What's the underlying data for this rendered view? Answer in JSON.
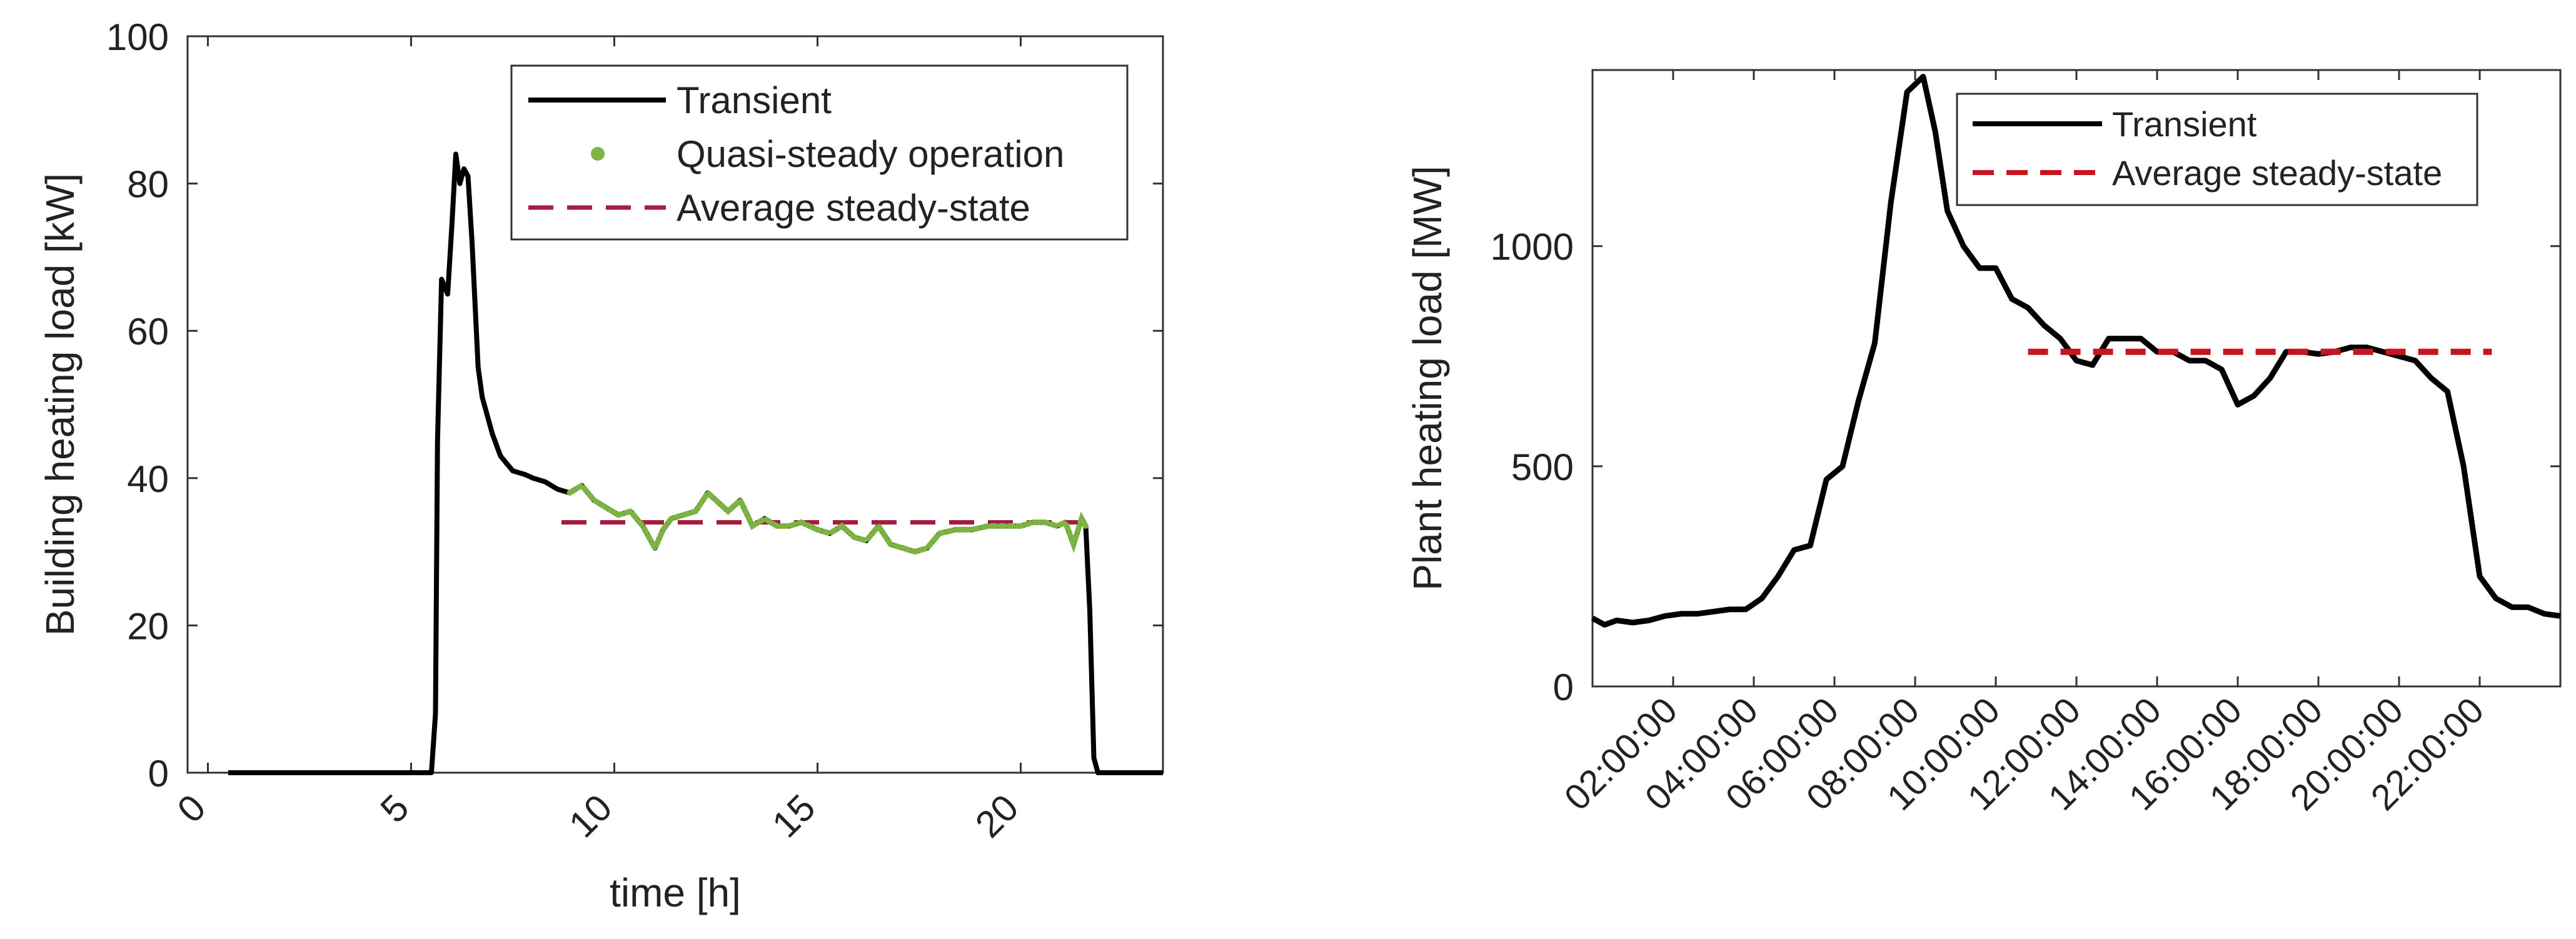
{
  "chart_data": [
    {
      "type": "line",
      "xlabel": "time [h]",
      "ylabel": "Building heating load [kW]",
      "xlim": [
        -0.5,
        23.5
      ],
      "ylim": [
        0,
        100
      ],
      "xticks": [
        0,
        5,
        10,
        15,
        20
      ],
      "yticks": [
        0,
        20,
        40,
        60,
        80,
        100
      ],
      "legend": {
        "position": "top-right",
        "entries": [
          "Transient",
          "Quasi-steady operation",
          "Average steady-state"
        ]
      },
      "colors": {
        "transient": "#000000",
        "quasi": "#7cb342",
        "average": "#a61c3c"
      },
      "series": [
        {
          "name": "Transient",
          "style": "solid",
          "x": [
            0.5,
            5.5,
            5.6,
            5.65,
            5.75,
            5.9,
            6.0,
            6.1,
            6.2,
            6.3,
            6.4,
            6.5,
            6.65,
            6.75,
            6.85,
            7.0,
            7.2,
            7.5,
            7.8,
            8.0,
            8.3,
            8.6,
            8.9,
            9.2,
            9.5,
            9.8,
            10.1,
            10.4,
            10.7,
            11.0,
            11.2,
            11.4,
            11.7,
            12.0,
            12.3,
            12.5,
            12.8,
            13.1,
            13.4,
            13.7,
            14.0,
            14.3,
            14.6,
            15.0,
            15.3,
            15.6,
            15.9,
            16.2,
            16.5,
            16.8,
            17.1,
            17.4,
            17.7,
            18.0,
            18.4,
            18.8,
            19.2,
            19.6,
            20.0,
            20.3,
            20.6,
            20.9,
            21.1,
            21.3,
            21.5,
            21.6,
            21.7,
            21.8,
            21.9,
            23.5
          ],
          "y": [
            0,
            0,
            8,
            45,
            67,
            65,
            74,
            84,
            80,
            82,
            81,
            72,
            55,
            51,
            49,
            46,
            43,
            41,
            40.5,
            40,
            39.5,
            38.5,
            38,
            39,
            37,
            36,
            35,
            35.5,
            33.5,
            30.5,
            33,
            34.5,
            35,
            35.5,
            38,
            37,
            35.5,
            37,
            33.5,
            34.5,
            33.5,
            33.5,
            34,
            33,
            32.5,
            33.5,
            32,
            31.5,
            33.5,
            31,
            30.5,
            30,
            30.5,
            32.5,
            33,
            33,
            33.5,
            33.5,
            33.5,
            34,
            34,
            33.5,
            34,
            31,
            34.5,
            33.5,
            22,
            2,
            0,
            0
          ]
        },
        {
          "name": "Quasi-steady operation",
          "style": "dots",
          "x_range": [
            8.9,
            21.6
          ]
        },
        {
          "name": "Average steady-state",
          "style": "dashed",
          "x": [
            8.7,
            21.6
          ],
          "y": [
            34,
            34
          ]
        }
      ]
    },
    {
      "type": "line",
      "xlabel": "",
      "ylabel": "Plant heating load [MW]",
      "xlim": [
        0,
        24
      ],
      "ylim": [
        0,
        1400
      ],
      "xticks": [
        2,
        4,
        6,
        8,
        10,
        12,
        14,
        16,
        18,
        20,
        22
      ],
      "xtick_labels": [
        "02:00:00",
        "04:00:00",
        "06:00:00",
        "08:00:00",
        "10:00:00",
        "12:00:00",
        "14:00:00",
        "16:00:00",
        "18:00:00",
        "20:00:00",
        "22:00:00"
      ],
      "yticks": [
        0,
        500,
        1000
      ],
      "legend": {
        "position": "top-right",
        "entries": [
          "Transient",
          "Average steady-state"
        ]
      },
      "colors": {
        "transient": "#000000",
        "average": "#c8141e"
      },
      "series": [
        {
          "name": "Transient",
          "style": "solid",
          "x": [
            0,
            0.3,
            0.6,
            1.0,
            1.4,
            1.8,
            2.2,
            2.6,
            3.0,
            3.4,
            3.8,
            4.2,
            4.6,
            5.0,
            5.4,
            5.8,
            6.2,
            6.6,
            7.0,
            7.4,
            7.8,
            8.2,
            8.5,
            8.8,
            9.2,
            9.6,
            10.0,
            10.4,
            10.8,
            11.2,
            11.6,
            12.0,
            12.4,
            12.8,
            13.2,
            13.6,
            14.0,
            14.4,
            14.8,
            15.2,
            15.6,
            16.0,
            16.4,
            16.8,
            17.2,
            17.6,
            18.0,
            18.4,
            18.8,
            19.2,
            19.6,
            20.0,
            20.4,
            20.8,
            21.2,
            21.6,
            22.0,
            22.4,
            22.8,
            23.2,
            23.6,
            24.0
          ],
          "y": [
            155,
            140,
            150,
            145,
            150,
            160,
            165,
            165,
            170,
            175,
            175,
            200,
            250,
            310,
            320,
            470,
            500,
            650,
            780,
            1100,
            1350,
            1385,
            1260,
            1080,
            1000,
            950,
            950,
            880,
            860,
            820,
            790,
            740,
            730,
            790,
            790,
            790,
            760,
            760,
            740,
            740,
            720,
            640,
            660,
            700,
            760,
            760,
            755,
            760,
            770,
            770,
            760,
            750,
            740,
            700,
            670,
            500,
            250,
            200,
            180,
            180,
            165,
            160
          ]
        },
        {
          "name": "Average steady-state",
          "style": "dashed",
          "x": [
            10.8,
            22.3
          ],
          "y": [
            760,
            760
          ]
        }
      ]
    }
  ]
}
